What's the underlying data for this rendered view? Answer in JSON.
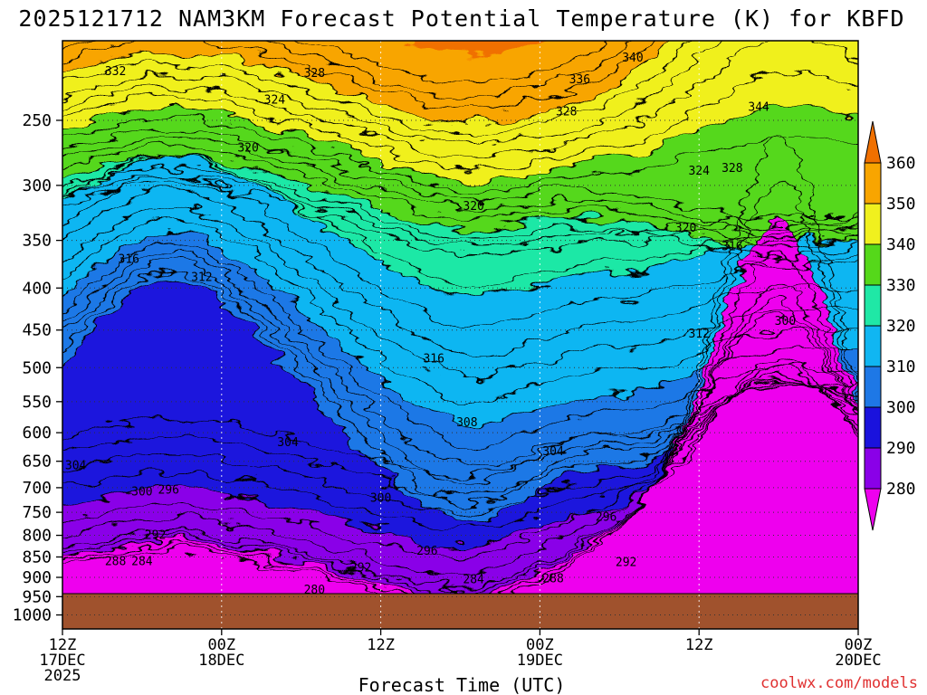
{
  "title": "2025121712 NAM3KM Forecast Potential Temperature (K) for KBFD",
  "credit": "coolwx.com/models",
  "chart_data": {
    "type": "heatmap",
    "title": "2025121712 NAM3KM Forecast Potential Temperature (K) for KBFD",
    "xlabel": "Forecast Time (UTC)",
    "ylabel": "",
    "x_ticks": [
      {
        "hours": 0,
        "line1": "12Z",
        "line2": "17DEC",
        "line3": "2025"
      },
      {
        "hours": 12,
        "line1": "00Z",
        "line2": "18DEC",
        "line3": ""
      },
      {
        "hours": 24,
        "line1": "12Z",
        "line2": "",
        "line3": ""
      },
      {
        "hours": 36,
        "line1": "00Z",
        "line2": "19DEC",
        "line3": ""
      },
      {
        "hours": 48,
        "line1": "12Z",
        "line2": "",
        "line3": ""
      },
      {
        "hours": 60,
        "line1": "00Z",
        "line2": "20DEC",
        "line3": ""
      }
    ],
    "xlim_hours": [
      0,
      60
    ],
    "y_ticks": [
      250,
      300,
      350,
      400,
      450,
      500,
      550,
      600,
      650,
      700,
      750,
      800,
      850,
      900,
      950,
      1000
    ],
    "ylim": [
      200,
      1040
    ],
    "y_scale": "log-pressure, decreasing upward",
    "surface_pressure": 942,
    "grid": true,
    "colorbar": {
      "ticks": [
        280,
        290,
        300,
        310,
        320,
        330,
        340,
        350,
        360
      ],
      "bins": [
        {
          "lo": 270,
          "hi": 280,
          "color": "#ee00ee"
        },
        {
          "lo": 280,
          "hi": 290,
          "color": "#8a00e8"
        },
        {
          "lo": 290,
          "hi": 300,
          "color": "#1a12dd"
        },
        {
          "lo": 300,
          "hi": 310,
          "color": "#1e78e6"
        },
        {
          "lo": 310,
          "hi": 320,
          "color": "#10b6f2"
        },
        {
          "lo": 320,
          "hi": 330,
          "color": "#1fe8a6"
        },
        {
          "lo": 330,
          "hi": 340,
          "color": "#55d81a"
        },
        {
          "lo": 340,
          "hi": 350,
          "color": "#f0f01e"
        },
        {
          "lo": 350,
          "hi": 360,
          "color": "#f8a500"
        },
        {
          "lo": 360,
          "hi": 370,
          "color": "#f07000"
        }
      ],
      "surface_color": "#a0522d"
    },
    "contour_labels": [
      {
        "value": 332,
        "hours": 4.0,
        "pressure": 218
      },
      {
        "value": 328,
        "hours": 19.0,
        "pressure": 219
      },
      {
        "value": 340,
        "hours": 43.0,
        "pressure": 210
      },
      {
        "value": 336,
        "hours": 39.0,
        "pressure": 223
      },
      {
        "value": 324,
        "hours": 16.0,
        "pressure": 236
      },
      {
        "value": 328,
        "hours": 38.0,
        "pressure": 244
      },
      {
        "value": 344,
        "hours": 52.5,
        "pressure": 241
      },
      {
        "value": 320,
        "hours": 14.0,
        "pressure": 270
      },
      {
        "value": 324,
        "hours": 48.0,
        "pressure": 288
      },
      {
        "value": 328,
        "hours": 50.5,
        "pressure": 286
      },
      {
        "value": 320,
        "hours": 31.0,
        "pressure": 318
      },
      {
        "value": 320,
        "hours": 47.0,
        "pressure": 338
      },
      {
        "value": 316,
        "hours": 5.0,
        "pressure": 369
      },
      {
        "value": 316,
        "hours": 50.5,
        "pressure": 356
      },
      {
        "value": 312,
        "hours": 10.5,
        "pressure": 388
      },
      {
        "value": 312,
        "hours": 48.0,
        "pressure": 455
      },
      {
        "value": 300,
        "hours": 54.5,
        "pressure": 439
      },
      {
        "value": 316,
        "hours": 28.0,
        "pressure": 488
      },
      {
        "value": 308,
        "hours": 30.5,
        "pressure": 583
      },
      {
        "value": 304,
        "hours": 17.0,
        "pressure": 617
      },
      {
        "value": 304,
        "hours": 37.0,
        "pressure": 633
      },
      {
        "value": 304,
        "hours": 1.0,
        "pressure": 658
      },
      {
        "value": 300,
        "hours": 6.0,
        "pressure": 708
      },
      {
        "value": 296,
        "hours": 8.0,
        "pressure": 705
      },
      {
        "value": 300,
        "hours": 24.0,
        "pressure": 721
      },
      {
        "value": 296,
        "hours": 41.0,
        "pressure": 760
      },
      {
        "value": 292,
        "hours": 7.0,
        "pressure": 800
      },
      {
        "value": 296,
        "hours": 27.5,
        "pressure": 836
      },
      {
        "value": 288,
        "hours": 4.0,
        "pressure": 861
      },
      {
        "value": 284,
        "hours": 6.0,
        "pressure": 861
      },
      {
        "value": 292,
        "hours": 22.5,
        "pressure": 876
      },
      {
        "value": 292,
        "hours": 42.5,
        "pressure": 863
      },
      {
        "value": 284,
        "hours": 31.0,
        "pressure": 906
      },
      {
        "value": 288,
        "hours": 37.0,
        "pressure": 903
      },
      {
        "value": 280,
        "hours": 19.0,
        "pressure": 932
      }
    ]
  }
}
